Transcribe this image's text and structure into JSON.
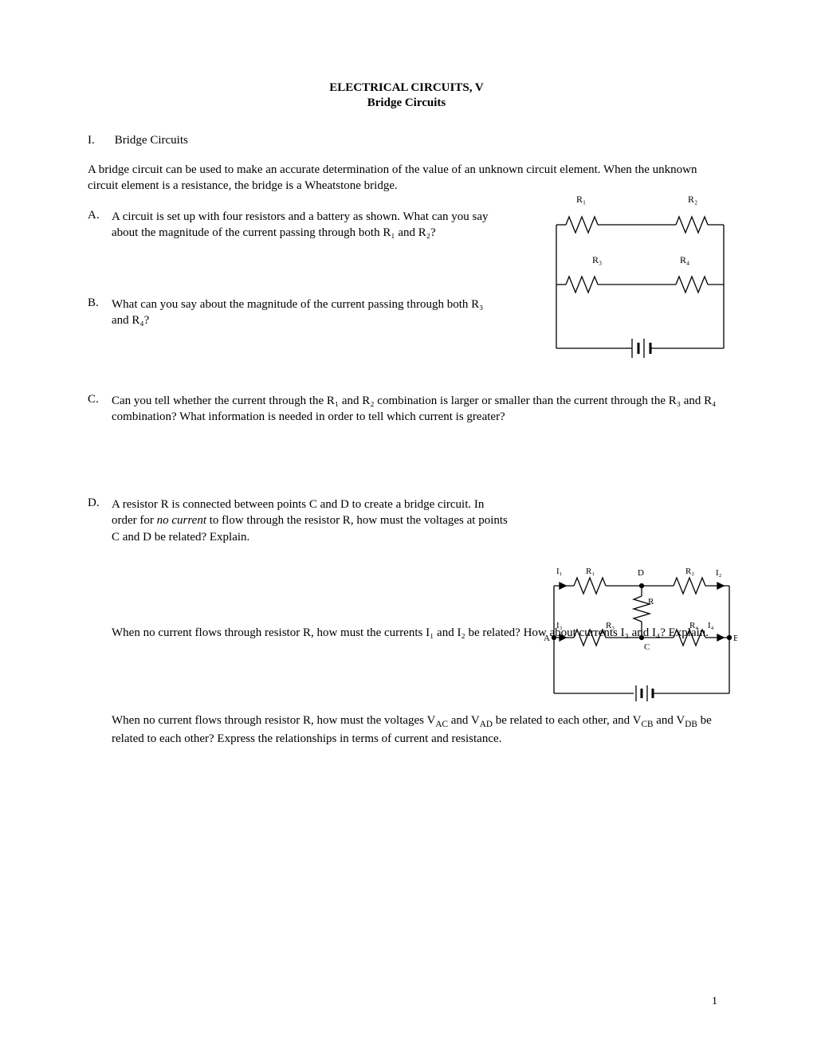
{
  "title_line1": "ELECTRICAL CIRCUITS, V",
  "title_line2": "Bridge Circuits",
  "section": {
    "roman": "I.",
    "heading": "Bridge Circuits"
  },
  "intro": "A bridge circuit can be used to make an accurate determination of the value of an unknown circuit element.  When the unknown circuit element is a resistance, the bridge is a Wheatstone bridge.",
  "items": {
    "A": {
      "letter": "A.",
      "text": "A circuit is set up with four resistors and a battery as shown.  What can you say about the magnitude of the current passing through both R₁ and R₂?"
    },
    "B": {
      "letter": "B.",
      "text": "What can you say about the magnitude of the current passing through both R₃ and R₄?"
    },
    "C": {
      "letter": "C.",
      "text": "Can you tell whether the current through the R₁ and R₂ combination is larger or smaller than the current through the R₃ and R₄ combination?  What information is needed in order to tell which current is greater?"
    },
    "D": {
      "letter": "D.",
      "text_html": "A resistor R is connected between points C and D to create a bridge circuit.  In order for <i>no current</i> to flow through the resistor R, how must the voltages at points C and D be related?  Explain."
    }
  },
  "sub1": "When no current flows through resistor R, how must the currents I₁ and I₂ be related?  How about currents I₃ and I₄?  Explain.",
  "sub2_html": "When no current flows through resistor R, how must the voltages V<sub>AC</sub> and V<sub>AD</sub> be related to each other, and V<sub>CB</sub> and V<sub>DB</sub> be related to each other?  Express the relationships in terms of current and resistance.",
  "page_number": "1",
  "fig1": {
    "labels": {
      "R1": "R₁",
      "R2": "R₂",
      "R3": "R₃",
      "R4": "R₄"
    }
  },
  "fig2": {
    "labels": {
      "I1": "I₁",
      "I2": "I₂",
      "I3": "I₃",
      "I4": "I₄",
      "R1": "R₁",
      "R2": "R₂",
      "R3": "R₃",
      "R4": "R₄",
      "R": "R",
      "A": "A",
      "B": "B",
      "C": "C",
      "D": "D"
    }
  },
  "styling": {
    "page_bg": "#ffffff",
    "text_color": "#000000",
    "line_color": "#000000",
    "line_width": 1.3,
    "font_family": "Palatino Linotype, Book Antiqua, Palatino, serif",
    "body_fontsize": 15,
    "label_fontsize": 12
  }
}
